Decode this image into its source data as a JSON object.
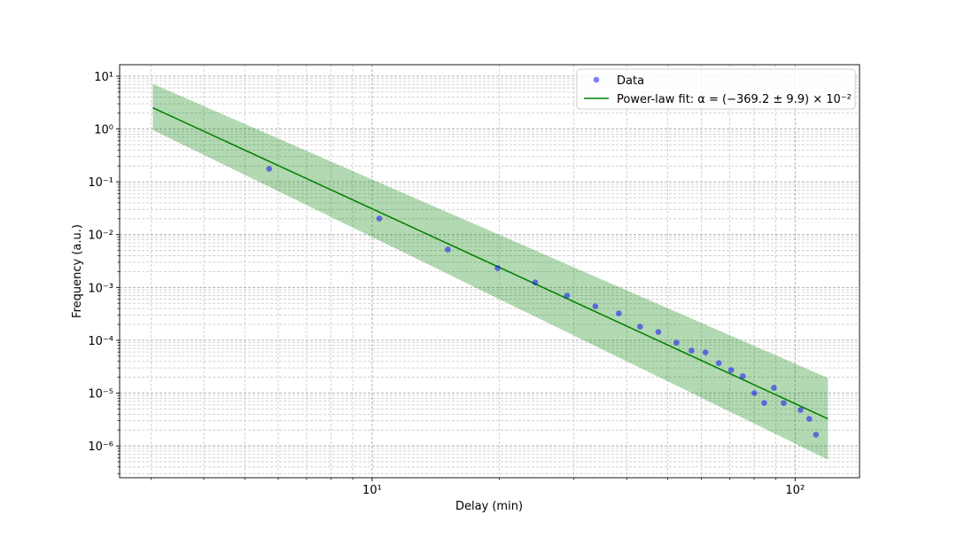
{
  "chart_data": {
    "type": "scatter",
    "xlabel": "Delay (min)",
    "ylabel": "Frequency (a.u.)",
    "xscale": "log",
    "yscale": "log",
    "xlim": [
      2.53,
      142
    ],
    "ylim": [
      2.5e-07,
      16.5
    ],
    "xticks": [
      {
        "value": 10,
        "label": "10¹"
      },
      {
        "value": 100,
        "label": "10²"
      }
    ],
    "yticks": [
      {
        "value": 1e-06,
        "label": "10⁻⁶"
      },
      {
        "value": 1e-05,
        "label": "10⁻⁵"
      },
      {
        "value": 0.0001,
        "label": "10⁻⁴"
      },
      {
        "value": 0.001,
        "label": "10⁻³"
      },
      {
        "value": 0.01,
        "label": "10⁻²"
      },
      {
        "value": 0.1,
        "label": "10⁻¹"
      },
      {
        "value": 1,
        "label": "10⁰"
      },
      {
        "value": 10,
        "label": "10¹"
      }
    ],
    "xminorticks": [
      3,
      4,
      5,
      6,
      7,
      8,
      9,
      20,
      30,
      40,
      50,
      60,
      70,
      80,
      90
    ],
    "yminorticks": [
      3e-07,
      4e-07,
      5e-07,
      6e-07,
      7e-07,
      8e-07,
      9e-07,
      2e-06,
      3e-06,
      4e-06,
      5e-06,
      6e-06,
      7e-06,
      8e-06,
      9e-06,
      2e-05,
      3e-05,
      4e-05,
      5e-05,
      6e-05,
      7e-05,
      8e-05,
      9e-05,
      0.0002,
      0.0003,
      0.0004,
      0.0005,
      0.0006,
      0.0007,
      0.0008,
      0.0009,
      0.002,
      0.003,
      0.004,
      0.005,
      0.006,
      0.007,
      0.008,
      0.009,
      0.02,
      0.03,
      0.04,
      0.05,
      0.06,
      0.07,
      0.08,
      0.09,
      0.2,
      0.3,
      0.4,
      0.5,
      0.6,
      0.7,
      0.8,
      0.9,
      2,
      3,
      4,
      5,
      6,
      7,
      8,
      9
    ],
    "grid": true,
    "legend": "upper right",
    "series": [
      {
        "name": "Data",
        "type": "scatter",
        "color": "#0000ff",
        "alpha": 0.5,
        "x": [
          5.71,
          10.4,
          15.1,
          19.8,
          24.3,
          28.9,
          33.7,
          38.3,
          43.0,
          47.5,
          52.4,
          56.9,
          61.4,
          66.0,
          70.6,
          75.2,
          80.1,
          84.5,
          89.1,
          94.0,
          103,
          108,
          112
        ],
        "values": [
          0.176,
          0.0202,
          0.00522,
          0.00232,
          0.00125,
          0.0007,
          0.00044,
          0.000324,
          0.000181,
          0.000144,
          9e-05,
          6.4e-05,
          5.9e-05,
          3.7e-05,
          2.73e-05,
          2.09e-05,
          1e-05,
          6.5e-06,
          1.26e-05,
          6.5e-06,
          4.8e-06,
          3.26e-06,
          1.63e-06
        ]
      },
      {
        "name": "Power-law fit: α = (−369.2 ± 9.9) × 10⁻²",
        "type": "line",
        "color": "#008000",
        "band_alpha": 0.3,
        "x": [
          3.03,
          119.6
        ],
        "values": [
          2.53,
          3.26e-06
        ],
        "lower": [
          0.96,
          5.5e-07
        ],
        "upper": [
          7.17,
          1.93e-05
        ]
      }
    ]
  }
}
